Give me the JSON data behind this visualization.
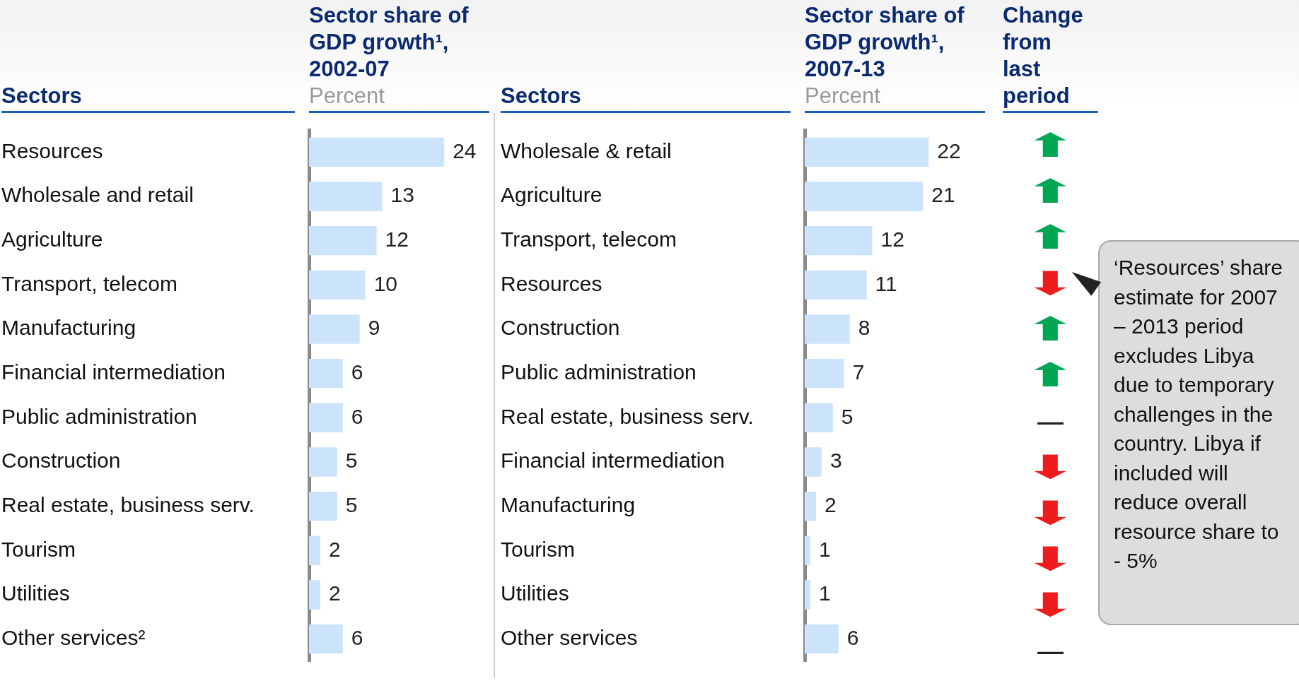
{
  "chart_data": [
    {
      "type": "bar",
      "orientation": "horizontal",
      "title": "Sector share of GDP growth¹, 2002-07",
      "subtitle": "Percent",
      "ylabel": "Sectors",
      "categories": [
        "Resources",
        "Wholesale and retail",
        "Agriculture",
        "Transport, telecom",
        "Manufacturing",
        "Financial intermediation",
        "Public administration",
        "Construction",
        "Real estate, business serv.",
        "Tourism",
        "Utilities",
        "Other services²"
      ],
      "values": [
        24,
        13,
        12,
        10,
        9,
        6,
        6,
        5,
        5,
        2,
        2,
        6
      ],
      "color": "#cce4fb",
      "data_labels": true,
      "tick_labels": "y"
    },
    {
      "type": "bar",
      "orientation": "horizontal",
      "title": "Sector share of GDP growth¹, 2007-13",
      "subtitle": "Percent",
      "ylabel": "Sectors",
      "categories": [
        "Wholesale & retail",
        "Agriculture",
        "Transport, telecom",
        "Resources",
        "Construction",
        "Public administration",
        "Real estate, business serv.",
        "Financial intermediation",
        "Manufacturing",
        "Tourism",
        "Utilities",
        "Other services"
      ],
      "values": [
        22,
        21,
        12,
        11,
        8,
        7,
        5,
        3,
        2,
        1,
        1,
        6
      ],
      "color": "#cce4fb",
      "data_labels": true,
      "tick_labels": "y",
      "annotations": [
        "‘Resources’ share estimate for 2007 – 2013 period excludes Libya due to temporary challenges in the country. Libya if included will reduce overall resource share to - 5%"
      ]
    },
    {
      "type": "other",
      "title": "Change from last period",
      "categories": [
        null,
        null,
        null,
        null,
        null,
        null,
        null,
        null,
        null,
        null,
        null,
        null
      ],
      "annotations": [
        "⬆",
        "⬆",
        "⬆",
        "⬇",
        "⬆",
        "⬆",
        "–",
        "⬇",
        "⬇",
        "⬇",
        "⬇",
        "–"
      ],
      "colors": [
        "#00a651",
        "#00a651",
        "#00a651",
        "#ee1c1c",
        "#00a651",
        "#00a651",
        "#222222",
        "#ee1c1c",
        "#ee1c1c",
        "#ee1c1c",
        "#ee1c1c",
        "#222222"
      ]
    }
  ]
}
